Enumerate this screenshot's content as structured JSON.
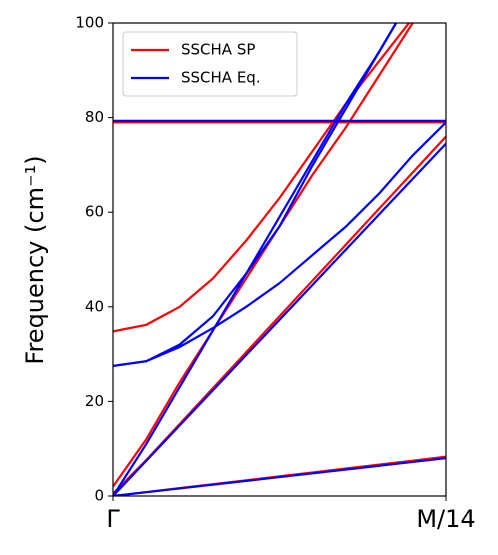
{
  "chart_data": {
    "type": "line",
    "ylabel": "Frequency (cm⁻¹)",
    "x": [
      0,
      0.1,
      0.2,
      0.3,
      0.4,
      0.5,
      0.6,
      0.7,
      0.8,
      0.9,
      1
    ],
    "xlim": [
      0,
      1
    ],
    "xticks": [
      {
        "value": 0,
        "label": "Γ"
      },
      {
        "value": 1,
        "label": "M/14"
      }
    ],
    "ylim": [
      0,
      100
    ],
    "yticks": [
      0,
      20,
      40,
      60,
      80,
      100
    ],
    "legend": "upper left",
    "series": [
      {
        "name": "SSCHA SP",
        "color": "#ff0000",
        "lines": [
          [
            0,
            0.83,
            1.66,
            2.49,
            3.32,
            4.15,
            4.98,
            5.81,
            6.64,
            7.47,
            8.3
          ],
          [
            0.5,
            7.6,
            15.2,
            22.8,
            30.4,
            38,
            45.6,
            53.2,
            60.8,
            68.4,
            76
          ],
          [
            2,
            12,
            24,
            35,
            46,
            57,
            68,
            78,
            89,
            100,
            110
          ],
          [
            34.8,
            36.2,
            40,
            46,
            54,
            63,
            73,
            83,
            92,
            101,
            110
          ],
          [
            79,
            79,
            79,
            79,
            79,
            79,
            79,
            79,
            79,
            79,
            79
          ]
        ]
      },
      {
        "name": "SSCHA Eq.",
        "color": "#0000ff",
        "lines": [
          [
            0,
            0.8,
            1.6,
            2.4,
            3.2,
            4,
            4.8,
            5.6,
            6.4,
            7.2,
            8
          ],
          [
            0,
            7.45,
            14.9,
            22.35,
            29.8,
            37.25,
            44.7,
            52.15,
            59.6,
            67.05,
            74.5
          ],
          [
            0,
            11,
            23,
            35,
            47,
            59,
            71,
            83,
            94,
            106,
            117
          ],
          [
            27.5,
            28.5,
            32,
            38,
            47,
            57,
            70,
            82,
            94,
            106,
            117
          ],
          [
            27.5,
            28.5,
            31.5,
            35.5,
            40,
            45,
            51,
            57,
            64,
            72,
            79
          ],
          [
            79.3,
            79.3,
            79.3,
            79.3,
            79.3,
            79.3,
            79.3,
            79.3,
            79.3,
            79.3,
            79.3
          ]
        ]
      }
    ]
  }
}
